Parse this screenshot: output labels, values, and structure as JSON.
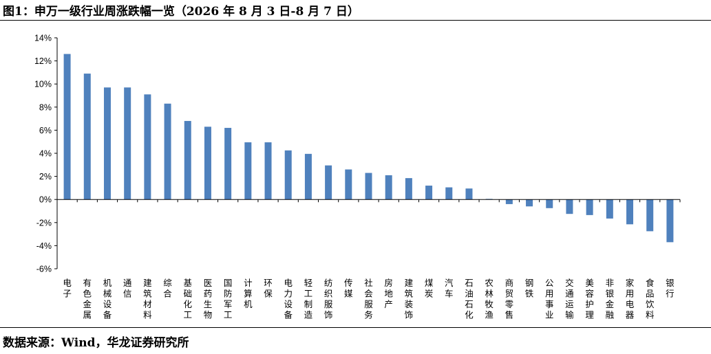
{
  "header": {
    "title": "图1：申万一级行业周涨跌幅一览（2026 年 8 月 3 日-8 月 7 日）"
  },
  "footer": {
    "source": "数据来源：Wind，华龙证券研究所"
  },
  "colors": {
    "bar": "#4F81BD",
    "axis": "#000000"
  },
  "chart_data": {
    "type": "bar",
    "title": "",
    "xlabel": "",
    "ylabel": "",
    "ylim": [
      -6,
      14
    ],
    "ytick_step": 2,
    "ytick_format": "percent",
    "grid": false,
    "legend": "none",
    "categories": [
      "电子",
      "有色金属",
      "机械设备",
      "通信",
      "建筑材料",
      "综合",
      "基础化工",
      "医药生物",
      "国防军工",
      "计算机",
      "环保",
      "电力设备",
      "轻工制造",
      "纺织服饰",
      "传媒",
      "社会服务",
      "房地产",
      "建筑装饰",
      "煤炭",
      "汽车",
      "石油石化",
      "农林牧渔",
      "商贸零售",
      "钢铁",
      "公用事业",
      "交通运输",
      "美容护理",
      "非银金融",
      "家用电器",
      "食品饮料",
      "银行"
    ],
    "values": [
      12.6,
      10.9,
      9.7,
      9.7,
      9.1,
      8.3,
      6.8,
      6.3,
      6.2,
      4.95,
      4.95,
      4.25,
      3.95,
      2.95,
      2.6,
      2.3,
      2.1,
      1.85,
      1.2,
      1.05,
      0.95,
      0.05,
      -0.4,
      -0.6,
      -0.75,
      -1.25,
      -1.35,
      -1.65,
      -2.15,
      -2.75,
      -3.7
    ]
  }
}
